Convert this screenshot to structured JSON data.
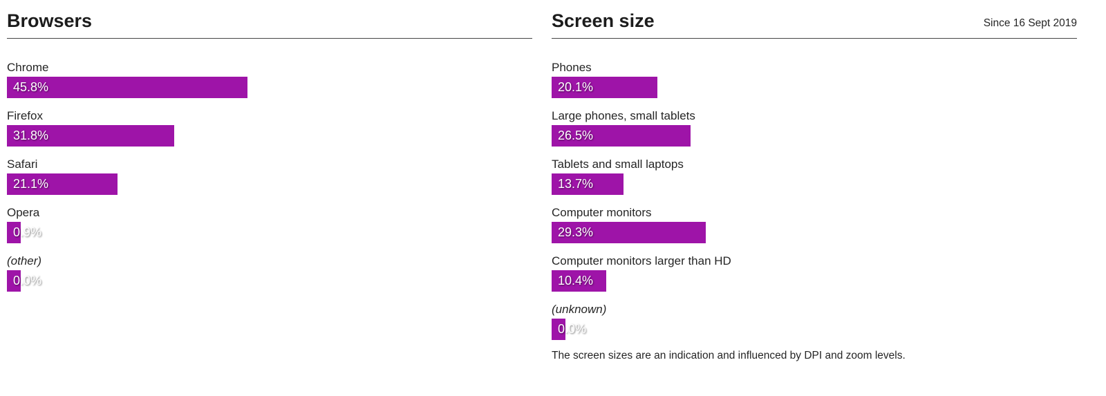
{
  "theme": {
    "bar_color": "#9e14a8",
    "bar_text_color": "#ffffff",
    "rule_color": "#444444"
  },
  "panels": [
    {
      "id": "browsers",
      "title": "Browsers",
      "since": "",
      "rows": [
        {
          "label": "Chrome",
          "pct": 45.8,
          "pct_label": "45.8%",
          "italic": false
        },
        {
          "label": "Firefox",
          "pct": 31.8,
          "pct_label": "31.8%",
          "italic": false
        },
        {
          "label": "Safari",
          "pct": 21.1,
          "pct_label": "21.1%",
          "italic": false
        },
        {
          "label": "Opera",
          "pct": 0.9,
          "pct_label": "0.9%",
          "italic": false
        },
        {
          "label": "(other)",
          "pct": 0.0,
          "pct_label": "0.0%",
          "italic": true
        }
      ],
      "footnote": ""
    },
    {
      "id": "screen-size",
      "title": "Screen size",
      "since": "Since 16 Sept 2019",
      "rows": [
        {
          "label": "Phones",
          "pct": 20.1,
          "pct_label": "20.1%",
          "italic": false
        },
        {
          "label": "Large phones, small tablets",
          "pct": 26.5,
          "pct_label": "26.5%",
          "italic": false
        },
        {
          "label": "Tablets and small laptops",
          "pct": 13.7,
          "pct_label": "13.7%",
          "italic": false
        },
        {
          "label": "Computer monitors",
          "pct": 29.3,
          "pct_label": "29.3%",
          "italic": false
        },
        {
          "label": "Computer monitors larger than HD",
          "pct": 10.4,
          "pct_label": "10.4%",
          "italic": false
        },
        {
          "label": "(unknown)",
          "pct": 0.0,
          "pct_label": "0.0%",
          "italic": true
        }
      ],
      "footnote": "The screen sizes are an indication and influenced by DPI and zoom levels."
    }
  ],
  "chart_data": [
    {
      "type": "bar",
      "orientation": "horizontal",
      "title": "Browsers",
      "categories": [
        "Chrome",
        "Firefox",
        "Safari",
        "Opera",
        "(other)"
      ],
      "values": [
        45.8,
        31.8,
        21.1,
        0.9,
        0.0
      ],
      "value_labels": [
        "45.8%",
        "31.8%",
        "21.1%",
        "0.9%",
        "0.0%"
      ],
      "unit": "percent",
      "xlim": [
        0,
        100
      ],
      "grid": false,
      "legend": "none",
      "bar_color": "#9e14a8"
    },
    {
      "type": "bar",
      "orientation": "horizontal",
      "title": "Screen size",
      "subtitle": "Since 16 Sept 2019",
      "categories": [
        "Phones",
        "Large phones, small tablets",
        "Tablets and small laptops",
        "Computer monitors",
        "Computer monitors larger than HD",
        "(unknown)"
      ],
      "values": [
        20.1,
        26.5,
        13.7,
        29.3,
        10.4,
        0.0
      ],
      "value_labels": [
        "20.1%",
        "26.5%",
        "13.7%",
        "29.3%",
        "10.4%",
        "0.0%"
      ],
      "unit": "percent",
      "xlim": [
        0,
        100
      ],
      "grid": false,
      "legend": "none",
      "bar_color": "#9e14a8",
      "annotation": "The screen sizes are an indication and influenced by DPI and zoom levels."
    }
  ]
}
